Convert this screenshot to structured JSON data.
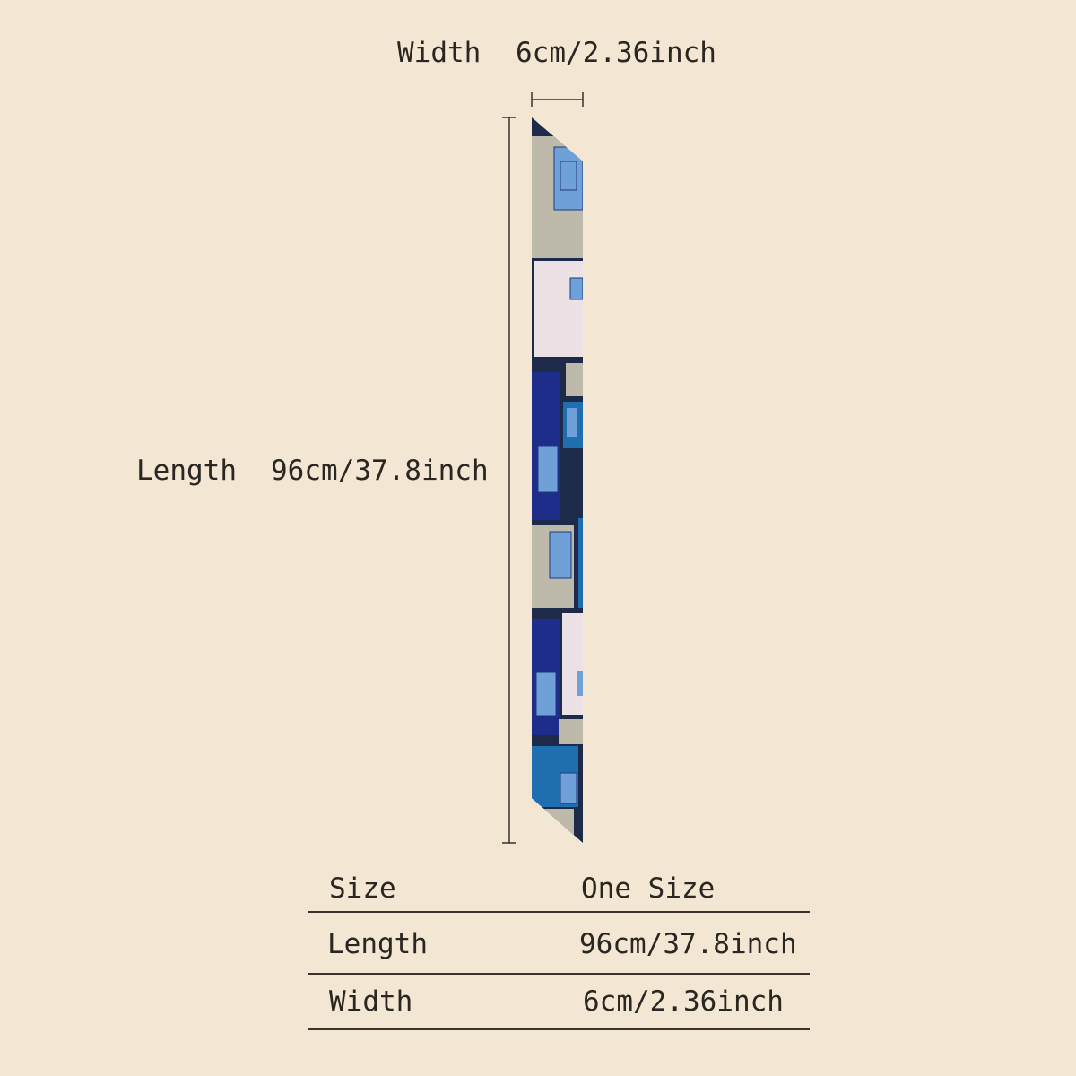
{
  "dimensions": {
    "width_label": "Width",
    "width_value": "6cm/2.36inch",
    "length_label": "Length",
    "length_value": "96cm/37.8inch"
  },
  "product": {
    "name": "scarf-image",
    "colors": {
      "navy": "#1d2a4a",
      "royal": "#1f2d8a",
      "teal": "#1f6fb0",
      "beige": "#bdbaac",
      "pink": "#ece2e6",
      "light_blue": "#6fa0d8"
    }
  },
  "table": {
    "rows": [
      {
        "label": "Size",
        "value": "One Size"
      },
      {
        "label": "Length",
        "value": "96cm/37.8inch"
      },
      {
        "label": "Width",
        "value": "6cm/2.36inch"
      }
    ]
  }
}
